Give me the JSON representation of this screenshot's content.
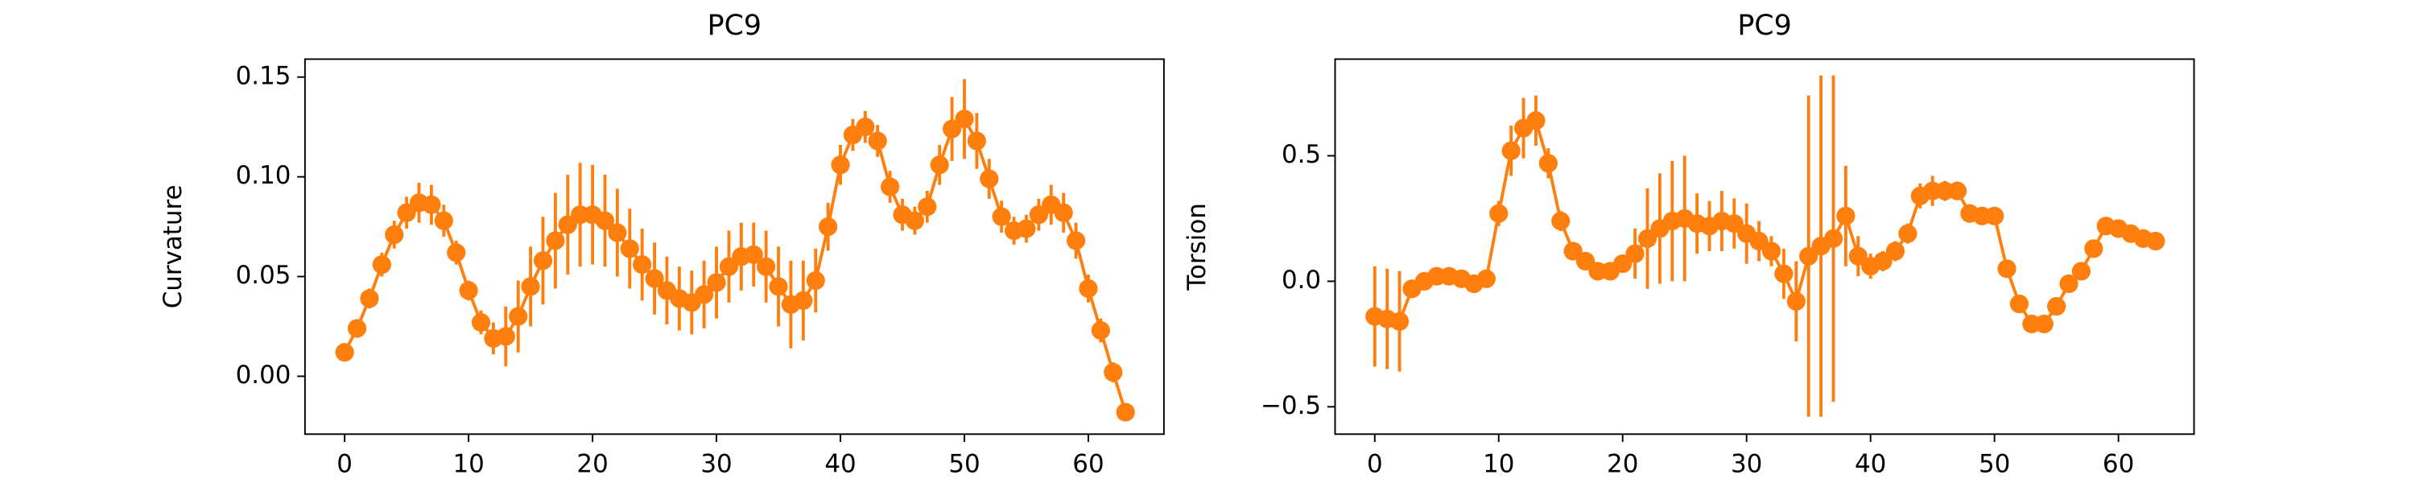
{
  "chart_data": [
    {
      "type": "errorbar-line",
      "title": "PC9",
      "ylabel": "Curvature",
      "color": "#ff7f0e",
      "x": [
        0,
        1,
        2,
        3,
        4,
        5,
        6,
        7,
        8,
        9,
        10,
        11,
        12,
        13,
        14,
        15,
        16,
        17,
        18,
        19,
        20,
        21,
        22,
        23,
        24,
        25,
        26,
        27,
        28,
        29,
        30,
        31,
        32,
        33,
        34,
        35,
        36,
        37,
        38,
        39,
        40,
        41,
        42,
        43,
        44,
        45,
        46,
        47,
        48,
        49,
        50,
        51,
        52,
        53,
        54,
        55,
        56,
        57,
        58,
        59,
        60,
        61,
        62,
        63
      ],
      "values": [
        0.012,
        0.024,
        0.039,
        0.056,
        0.071,
        0.082,
        0.087,
        0.086,
        0.078,
        0.062,
        0.043,
        0.027,
        0.019,
        0.02,
        0.03,
        0.045,
        0.058,
        0.068,
        0.076,
        0.081,
        0.081,
        0.078,
        0.072,
        0.064,
        0.056,
        0.049,
        0.043,
        0.039,
        0.037,
        0.041,
        0.047,
        0.055,
        0.06,
        0.061,
        0.055,
        0.045,
        0.036,
        0.038,
        0.048,
        0.075,
        0.106,
        0.121,
        0.125,
        0.118,
        0.095,
        0.081,
        0.078,
        0.085,
        0.106,
        0.124,
        0.129,
        0.118,
        0.099,
        0.08,
        0.073,
        0.074,
        0.081,
        0.086,
        0.082,
        0.068,
        0.044,
        0.023,
        0.002,
        -0.018
      ],
      "errors": [
        0.003,
        0.004,
        0.005,
        0.006,
        0.007,
        0.008,
        0.01,
        0.01,
        0.008,
        0.006,
        0.005,
        0.006,
        0.008,
        0.015,
        0.018,
        0.02,
        0.022,
        0.024,
        0.025,
        0.026,
        0.025,
        0.023,
        0.022,
        0.02,
        0.018,
        0.018,
        0.017,
        0.016,
        0.016,
        0.017,
        0.018,
        0.018,
        0.017,
        0.016,
        0.018,
        0.02,
        0.022,
        0.02,
        0.016,
        0.012,
        0.01,
        0.008,
        0.008,
        0.008,
        0.008,
        0.008,
        0.007,
        0.008,
        0.01,
        0.016,
        0.02,
        0.014,
        0.01,
        0.008,
        0.007,
        0.007,
        0.008,
        0.01,
        0.01,
        0.009,
        0.007,
        0.006,
        0.005,
        0.004
      ],
      "xlim": [
        -3.2,
        66.1
      ],
      "ylim": [
        -0.029,
        0.159
      ],
      "xticks": [
        0,
        10,
        20,
        30,
        40,
        50,
        60
      ],
      "yticks": [
        {
          "value": 0,
          "label": "0.00"
        },
        0.05,
        {
          "value": 0.1,
          "label": "0.10"
        },
        0.15
      ]
    },
    {
      "type": "errorbar-line",
      "title": "PC9",
      "ylabel": "Torsion",
      "color": "#ff7f0e",
      "x": [
        0,
        1,
        2,
        3,
        4,
        5,
        6,
        7,
        8,
        9,
        10,
        11,
        12,
        13,
        14,
        15,
        16,
        17,
        18,
        19,
        20,
        21,
        22,
        23,
        24,
        25,
        26,
        27,
        28,
        29,
        30,
        31,
        32,
        33,
        34,
        35,
        36,
        37,
        38,
        39,
        40,
        41,
        42,
        43,
        44,
        45,
        46,
        47,
        48,
        49,
        50,
        51,
        52,
        53,
        54,
        55,
        56,
        57,
        58,
        59,
        60,
        61,
        62,
        63
      ],
      "values": [
        -0.14,
        -0.15,
        -0.16,
        -0.03,
        0.0,
        0.02,
        0.02,
        0.01,
        -0.01,
        0.01,
        0.27,
        0.52,
        0.61,
        0.64,
        0.47,
        0.24,
        0.12,
        0.08,
        0.04,
        0.04,
        0.07,
        0.11,
        0.17,
        0.21,
        0.24,
        0.25,
        0.23,
        0.22,
        0.24,
        0.23,
        0.19,
        0.16,
        0.12,
        0.03,
        -0.08,
        0.1,
        0.14,
        0.17,
        0.26,
        0.1,
        0.06,
        0.08,
        0.12,
        0.19,
        0.34,
        0.36,
        0.36,
        0.36,
        0.27,
        0.26,
        0.26,
        0.05,
        -0.09,
        -0.17,
        -0.17,
        -0.1,
        -0.01,
        0.04,
        0.13,
        0.22,
        0.21,
        0.19,
        0.17,
        0.16
      ],
      "errors": [
        0.2,
        0.2,
        0.2,
        0.03,
        0.02,
        0.02,
        0.02,
        0.02,
        0.02,
        0.02,
        0.05,
        0.1,
        0.12,
        0.1,
        0.06,
        0.04,
        0.03,
        0.03,
        0.02,
        0.02,
        0.03,
        0.1,
        0.2,
        0.22,
        0.24,
        0.25,
        0.12,
        0.1,
        0.12,
        0.1,
        0.12,
        0.08,
        0.06,
        0.1,
        0.16,
        0.64,
        0.68,
        0.65,
        0.2,
        0.08,
        0.05,
        0.04,
        0.04,
        0.04,
        0.05,
        0.06,
        0.04,
        0.03,
        0.03,
        0.03,
        0.03,
        0.03,
        0.03,
        0.02,
        0.02,
        0.02,
        0.02,
        0.02,
        0.02,
        0.02,
        0.02,
        0.02,
        0.02,
        0.02
      ],
      "xlim": [
        -3.2,
        66.1
      ],
      "ylim": [
        -0.609,
        0.885
      ],
      "xticks": [
        0,
        10,
        20,
        30,
        40,
        50,
        60
      ],
      "yticks": [
        {
          "value": -0.5,
          "label": "−0.5"
        },
        {
          "value": 0,
          "label": "0.0"
        },
        0.5
      ]
    }
  ]
}
